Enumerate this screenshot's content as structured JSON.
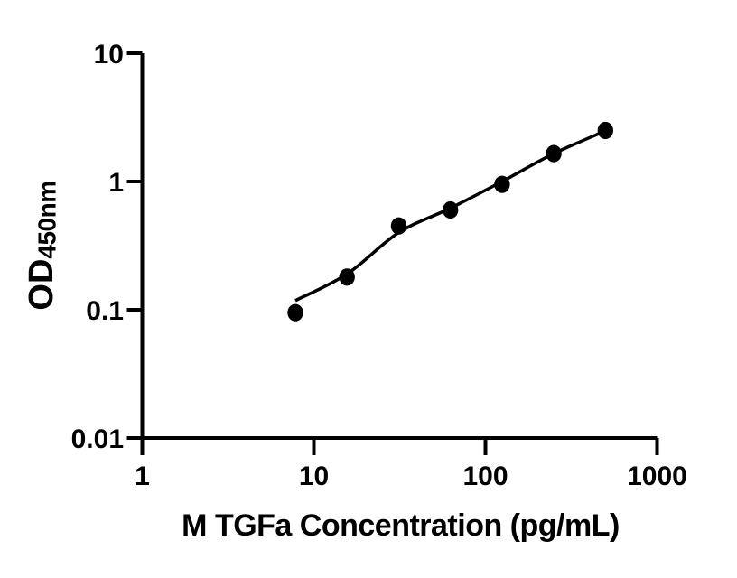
{
  "figure": {
    "background_color": "#ffffff",
    "ink_color": "#000000"
  },
  "chart_data": {
    "type": "scatter",
    "title": "",
    "xlabel": "M TGFa Concentration (pg/mL)",
    "ylabel": "OD",
    "ylabel_sub": "450nm",
    "x_scale": "log",
    "y_scale": "log",
    "xlim": [
      1,
      1000
    ],
    "ylim": [
      0.01,
      10
    ],
    "x_ticks": [
      1,
      10,
      100,
      1000
    ],
    "x_tick_labels": [
      "1",
      "10",
      "100",
      "1000"
    ],
    "y_ticks": [
      10,
      1,
      0.1,
      0.01
    ],
    "y_tick_labels": [
      "10",
      "1",
      "0.1",
      "0.01"
    ],
    "grid": false,
    "legend": null,
    "series": [
      {
        "name": "standards",
        "marker": "filled-circle",
        "color": "#000000",
        "points": [
          {
            "x": 7.8,
            "od": 0.095
          },
          {
            "x": 15.6,
            "od": 0.18
          },
          {
            "x": 31.25,
            "od": 0.45
          },
          {
            "x": 62.5,
            "od": 0.6
          },
          {
            "x": 125,
            "od": 0.95
          },
          {
            "x": 250,
            "od": 1.65
          },
          {
            "x": 500,
            "od": 2.5
          }
        ]
      }
    ],
    "fit_curve": {
      "name": "fitted-standard-curve",
      "color": "#000000",
      "points": [
        {
          "x": 7.8,
          "od": 0.118
        },
        {
          "x": 15.6,
          "od": 0.19
        },
        {
          "x": 31.25,
          "od": 0.4
        },
        {
          "x": 62.5,
          "od": 0.62
        },
        {
          "x": 125,
          "od": 1.0
        },
        {
          "x": 250,
          "od": 1.65
        },
        {
          "x": 500,
          "od": 2.48
        }
      ]
    }
  }
}
